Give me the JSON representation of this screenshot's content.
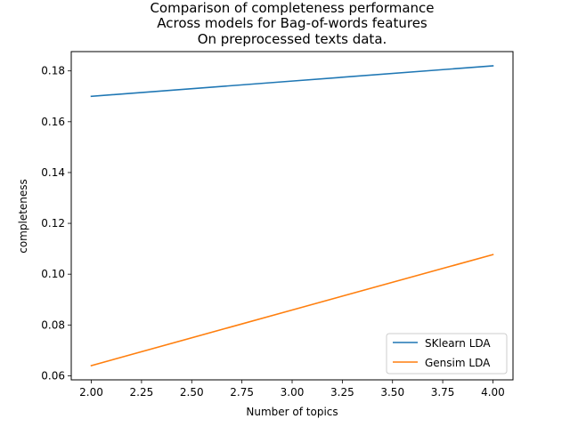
{
  "chart_data": {
    "type": "line",
    "title": [
      "Comparison of completeness performance",
      "Across models for Bag-of-words features",
      "On preprocessed texts data."
    ],
    "xlabel": "Number of topics",
    "ylabel": "completeness",
    "xlim": [
      1.9,
      4.1
    ],
    "ylim": [
      0.0584,
      0.1876
    ],
    "x_ticks": [
      "2.00",
      "2.25",
      "2.50",
      "2.75",
      "3.00",
      "3.25",
      "3.50",
      "3.75",
      "4.00"
    ],
    "y_ticks": [
      "0.06",
      "0.08",
      "0.10",
      "0.12",
      "0.14",
      "0.16",
      "0.18"
    ],
    "grid": false,
    "legend_position": "lower-right",
    "series": [
      {
        "name": "SKlearn LDA",
        "color": "#1f77b4",
        "x": [
          2,
          3,
          4
        ],
        "values": [
          0.17,
          0.176,
          0.182
        ]
      },
      {
        "name": "Gensim LDA",
        "color": "#ff7f0e",
        "x": [
          2,
          3,
          4
        ],
        "values": [
          0.064,
          0.0859,
          0.1077
        ]
      }
    ]
  }
}
